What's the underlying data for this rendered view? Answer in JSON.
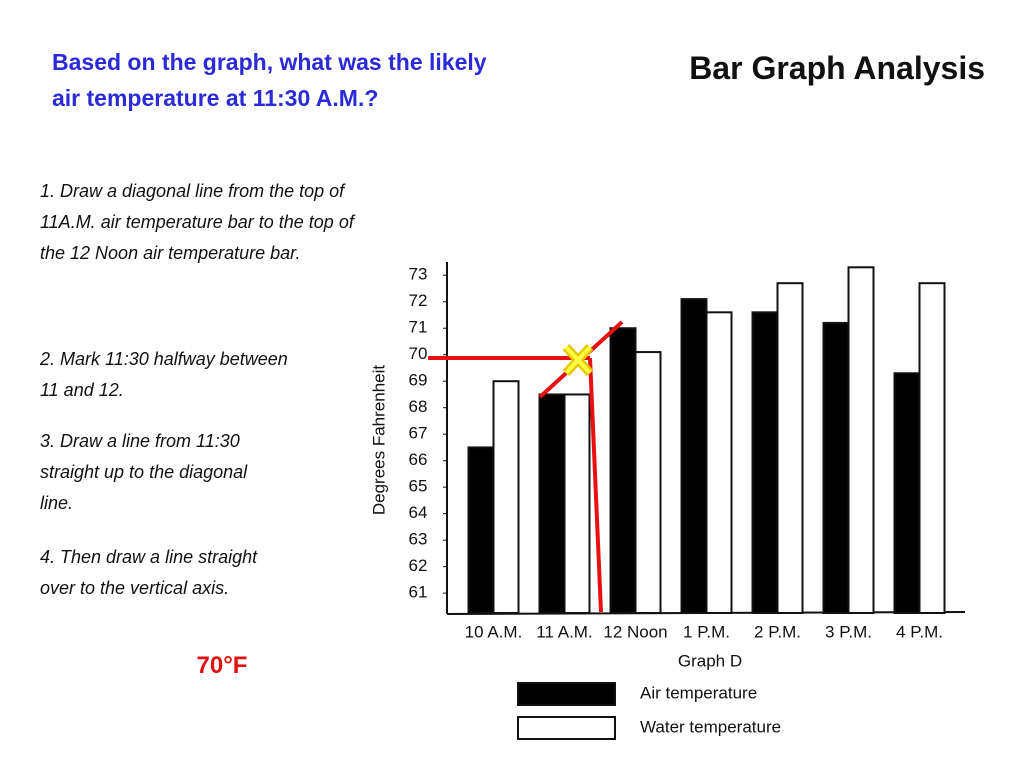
{
  "title": "Bar Graph Analysis",
  "question": "Based on the graph, what was the likely air temperature at 11:30 A.M.?",
  "steps": [
    "1.  Draw a diagonal line from the top of 11A.M. air temperature bar to the top of the 12 Noon air temperature bar.",
    "2.  Mark 11:30 halfway between 11 and 12.",
    "3.  Draw a line from 11:30 straight up to the diagonal line.",
    "4.  Then draw a line straight over  to the vertical axis."
  ],
  "answer": "70°F",
  "chart_data": {
    "type": "bar",
    "subtitle": "Graph D",
    "y_label": "Degrees Fahrenheit",
    "categories": [
      "10 A.M.",
      "11 A.M.",
      "12 Noon",
      "1 P.M.",
      "2 P.M.",
      "3 P.M.",
      "4 P.M."
    ],
    "series": [
      {
        "name": "Air temperature",
        "color": "#000000",
        "values": [
          66.5,
          68.5,
          71,
          72.1,
          71.6,
          71.2,
          69.3
        ]
      },
      {
        "name": "Water temperature",
        "color": "#ffffff",
        "values": [
          69,
          68.5,
          70.1,
          71.6,
          72.7,
          73.3,
          72.7
        ]
      }
    ],
    "ylim": [
      60.25,
      73.5
    ],
    "yticks": [
      61,
      62,
      63,
      64,
      65,
      66,
      67,
      68,
      69,
      70,
      71,
      72,
      73
    ],
    "grid": false
  }
}
